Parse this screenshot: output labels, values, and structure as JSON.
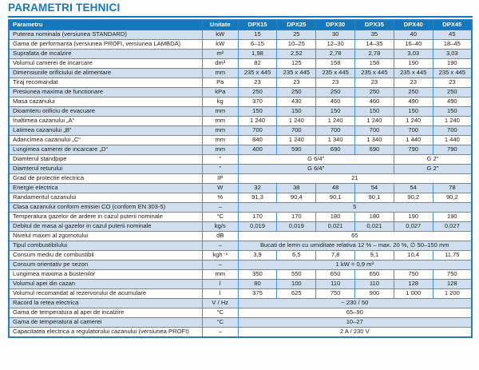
{
  "page": {
    "title": "PARAMETRI TEHNICI"
  },
  "colors": {
    "accent": "#1478be",
    "row_alt": "#cfdfef",
    "border": "#4a92c8",
    "outer_border": "#2a7cbd"
  },
  "table": {
    "col_param": "Parametru",
    "col_unit": "Unitate",
    "models": [
      "DPX15",
      "DPX25",
      "DPX30",
      "DPX35",
      "DPX40",
      "DPX45"
    ],
    "rows": [
      {
        "label": "Puterea nominala (versiunea STANDARD)",
        "unit": "kW",
        "cells": [
          {
            "t": "15"
          },
          {
            "t": "25"
          },
          {
            "t": "30"
          },
          {
            "t": "35"
          },
          {
            "t": "40"
          },
          {
            "t": "45"
          }
        ]
      },
      {
        "label": "Gama de performanta (versiunea PROFI, versiunea LAMBDA)",
        "unit": "kW",
        "cells": [
          {
            "t": "6–15"
          },
          {
            "t": "10–25"
          },
          {
            "t": "12–30"
          },
          {
            "t": "14–35"
          },
          {
            "t": "16–40"
          },
          {
            "t": "18–45"
          }
        ]
      },
      {
        "label": "Suprafata de incalzire",
        "unit": "m²",
        "cells": [
          {
            "t": "1,98"
          },
          {
            "t": "2,52"
          },
          {
            "t": "2,78"
          },
          {
            "t": "2,78"
          },
          {
            "t": "3,03"
          },
          {
            "t": "3,03"
          }
        ]
      },
      {
        "label": "Volumul camerei de incarcare",
        "unit": "dm³",
        "cells": [
          {
            "t": "82"
          },
          {
            "t": "125"
          },
          {
            "t": "158"
          },
          {
            "t": "158"
          },
          {
            "t": "190"
          },
          {
            "t": "190"
          }
        ]
      },
      {
        "label": "Dimensiunile orificiului de alimentare",
        "unit": "mm",
        "cells": [
          {
            "t": "235 x 445"
          },
          {
            "t": "235 x 445"
          },
          {
            "t": "235 x 445"
          },
          {
            "t": "235 x 445"
          },
          {
            "t": "235 x 445"
          },
          {
            "t": "235 x 445"
          }
        ]
      },
      {
        "label": "Tiraj recomandat",
        "unit": "Pa",
        "cells": [
          {
            "t": "23"
          },
          {
            "t": "23"
          },
          {
            "t": "23"
          },
          {
            "t": "23"
          },
          {
            "t": "23"
          },
          {
            "t": "23"
          }
        ]
      },
      {
        "label": "Presiunea maxima de functionare",
        "unit": "kPa",
        "cells": [
          {
            "t": "250"
          },
          {
            "t": "250"
          },
          {
            "t": "250"
          },
          {
            "t": "250"
          },
          {
            "t": "250"
          },
          {
            "t": "250"
          }
        ]
      },
      {
        "label": "Masa cazanului",
        "unit": "kg",
        "cells": [
          {
            "t": "370"
          },
          {
            "t": "430"
          },
          {
            "t": "460"
          },
          {
            "t": "460"
          },
          {
            "t": "490"
          },
          {
            "t": "490"
          }
        ]
      },
      {
        "label": "Dioamteru orificiu de evacuare",
        "unit": "mm",
        "cells": [
          {
            "t": "150"
          },
          {
            "t": "150"
          },
          {
            "t": "150"
          },
          {
            "t": "150"
          },
          {
            "t": "150"
          },
          {
            "t": "150"
          }
        ]
      },
      {
        "label": "Inaltimea cazanului „A“",
        "unit": "mm",
        "cells": [
          {
            "t": "1 240"
          },
          {
            "t": "1 240"
          },
          {
            "t": "1 240"
          },
          {
            "t": "1 240"
          },
          {
            "t": "1 240"
          },
          {
            "t": "1 240"
          }
        ]
      },
      {
        "label": "Latimea cazanului „B“",
        "unit": "mm",
        "cells": [
          {
            "t": "700"
          },
          {
            "t": "700"
          },
          {
            "t": "700"
          },
          {
            "t": "700"
          },
          {
            "t": "700"
          },
          {
            "t": "700"
          }
        ]
      },
      {
        "label": "Adancimea cazanului „C“",
        "unit": "mm",
        "cells": [
          {
            "t": "840"
          },
          {
            "t": "1 240"
          },
          {
            "t": "1 340"
          },
          {
            "t": "1 340"
          },
          {
            "t": "1 440"
          },
          {
            "t": "1 440"
          }
        ]
      },
      {
        "label": "Lungimea camerei de incarcare „D“",
        "unit": "mm",
        "cells": [
          {
            "t": "400"
          },
          {
            "t": "590"
          },
          {
            "t": "690"
          },
          {
            "t": "690"
          },
          {
            "t": "790"
          },
          {
            "t": "790"
          }
        ]
      },
      {
        "label": "Diamterul standpipe",
        "unit": "\"",
        "cells": [
          {
            "t": "G 6/4\"",
            "s": 4
          },
          {
            "t": "G 2\"",
            "s": 2
          }
        ]
      },
      {
        "label": "Diamterul returului",
        "unit": "\"",
        "cells": [
          {
            "t": "G 6/4\"",
            "s": 4
          },
          {
            "t": "G 2\"",
            "s": 2
          }
        ]
      },
      {
        "label": "Grad de protectie electrica",
        "unit": "IP",
        "cells": [
          {
            "t": "21",
            "s": 6
          }
        ]
      },
      {
        "label": "Energie electrica",
        "unit": "W",
        "cells": [
          {
            "t": "32"
          },
          {
            "t": "38"
          },
          {
            "t": "48"
          },
          {
            "t": "54"
          },
          {
            "t": "54"
          },
          {
            "t": "78"
          }
        ]
      },
      {
        "label": "Randamentul cazanului",
        "unit": "%",
        "cells": [
          {
            "t": "91,3"
          },
          {
            "t": "90,4"
          },
          {
            "t": "90,1"
          },
          {
            "t": "90,1"
          },
          {
            "t": "90,2"
          },
          {
            "t": "90,2"
          }
        ]
      },
      {
        "label": "Clasa cazanului conform emisiei CO (conform EN 303-5)",
        "unit": "–",
        "cells": [
          {
            "t": "5",
            "s": 6
          }
        ]
      },
      {
        "label": "Temperatura gazelor de ardere in cazul puterii nominale",
        "unit": "°C",
        "cells": [
          {
            "t": "170"
          },
          {
            "t": "170"
          },
          {
            "t": "180"
          },
          {
            "t": "180"
          },
          {
            "t": "190"
          },
          {
            "t": "190"
          }
        ]
      },
      {
        "label": "Debitul de masa al gazelor in cazul puterii nominale",
        "unit": "kg/s",
        "cells": [
          {
            "t": "0,019"
          },
          {
            "t": "0,019"
          },
          {
            "t": "0,021"
          },
          {
            "t": "0,021"
          },
          {
            "t": "0,027"
          },
          {
            "t": "0,027"
          }
        ]
      },
      {
        "label": "Nivelul maxim al zgomotului",
        "unit": "dB",
        "cells": [
          {
            "t": "65",
            "s": 6
          }
        ]
      },
      {
        "label": "Tipul combustibilului",
        "unit": "–",
        "cells": [
          {
            "t": "Bucati de lemn cu umiditate relativa 12 % – max. 20 %, ∅ 50–150 mm",
            "s": 6
          }
        ]
      },
      {
        "label": "Consum mediu de combustibil",
        "unit": "kgh⁻¹",
        "cells": [
          {
            "t": "3,9"
          },
          {
            "t": "6,5"
          },
          {
            "t": "7,8"
          },
          {
            "t": "9,1"
          },
          {
            "t": "10,4"
          },
          {
            "t": "11,75"
          }
        ]
      },
      {
        "label": "Consum orientativ pe sezon",
        "unit": "–",
        "cells": [
          {
            "t": "1 kW = 0,9 m³",
            "s": 6
          }
        ]
      },
      {
        "label": "Lungimea maxima a bustenilor",
        "unit": "mm",
        "cells": [
          {
            "t": "350"
          },
          {
            "t": "550"
          },
          {
            "t": "650"
          },
          {
            "t": "650"
          },
          {
            "t": "750"
          },
          {
            "t": "750"
          }
        ]
      },
      {
        "label": "Volumul apei din cazan",
        "unit": "l",
        "cells": [
          {
            "t": "80"
          },
          {
            "t": "100"
          },
          {
            "t": "110"
          },
          {
            "t": "110"
          },
          {
            "t": "128"
          },
          {
            "t": "128"
          }
        ]
      },
      {
        "label": "Volumul recomandat al rezervorului de acumulare",
        "unit": "l",
        "cells": [
          {
            "t": "375"
          },
          {
            "t": "625"
          },
          {
            "t": "750"
          },
          {
            "t": "900"
          },
          {
            "t": "1 000"
          },
          {
            "t": "1 200"
          }
        ]
      },
      {
        "label": "Racord la retea electrica",
        "unit": "V / Hz",
        "cells": [
          {
            "t": "~ 230 / 50",
            "s": 6
          }
        ]
      },
      {
        "label": "Gama de temperatura al apei de incalzire",
        "unit": "°C",
        "cells": [
          {
            "t": "65–90",
            "s": 6
          }
        ]
      },
      {
        "label": "Gama de temperatura al camerei",
        "unit": "°C",
        "cells": [
          {
            "t": "10–27",
            "s": 6
          }
        ]
      },
      {
        "label": "Capacitatea electrica a regulatorului cazanului (versiunea PROFI)",
        "unit": "–",
        "cells": [
          {
            "t": "2 A / 230 V",
            "s": 6
          }
        ]
      }
    ]
  }
}
